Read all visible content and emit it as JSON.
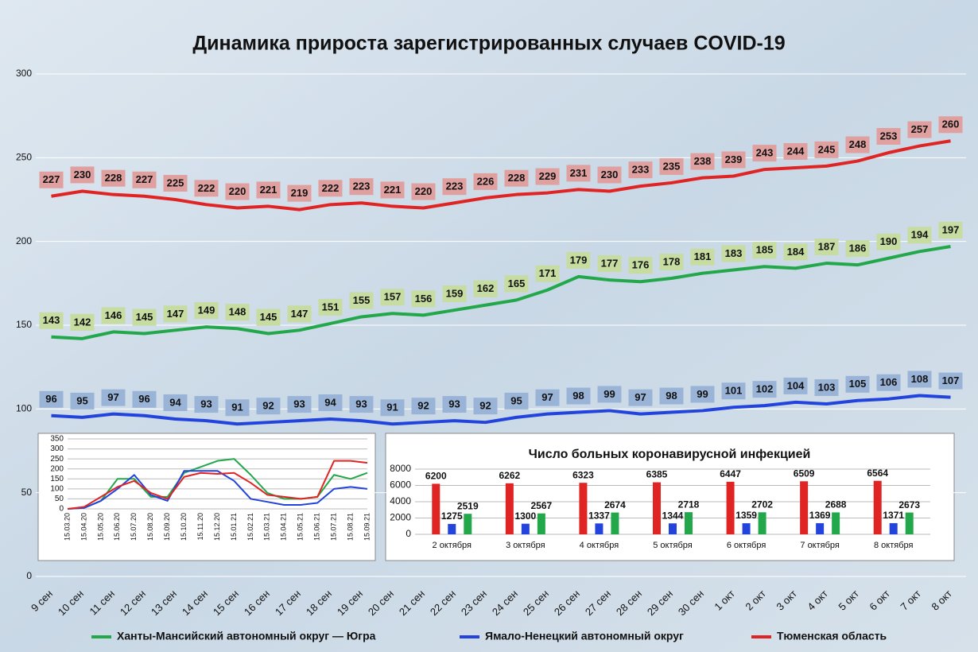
{
  "chart_data": [
    {
      "type": "line",
      "title": "Динамика прироста зарегистрированных случаев COVID-19",
      "categories": [
        "9 сен",
        "10 сен",
        "11 сен",
        "12 сен",
        "13 сен",
        "14 сен",
        "15 сен",
        "16 сен",
        "17 сен",
        "18 сен",
        "19 сен",
        "20 сен",
        "21 сен",
        "22 сен",
        "23 сен",
        "24 сен",
        "25 сен",
        "26 сен",
        "27 сен",
        "28 сен",
        "29 сен",
        "30 сен",
        "1 окт",
        "2 окт",
        "3 окт",
        "4 окт",
        "5 окт",
        "6 окт",
        "7 окт",
        "8 окт"
      ],
      "series": [
        {
          "name": "Ханты-Мансийский автономный округ — Югра",
          "color": "#22a84a",
          "label_color": "#c6dca0",
          "values": [
            143,
            142,
            146,
            145,
            147,
            149,
            148,
            145,
            147,
            151,
            155,
            157,
            156,
            159,
            162,
            165,
            171,
            179,
            177,
            176,
            178,
            181,
            183,
            185,
            184,
            187,
            186,
            190,
            194,
            197
          ]
        },
        {
          "name": "Ямало-Ненецкий автономный округ",
          "color": "#2244dd",
          "label_color": "#9ab4d8",
          "values": [
            96,
            95,
            97,
            96,
            94,
            93,
            91,
            92,
            93,
            94,
            93,
            91,
            92,
            93,
            92,
            95,
            97,
            98,
            99,
            97,
            98,
            99,
            101,
            102,
            104,
            103,
            105,
            106,
            108,
            107
          ]
        },
        {
          "name": "Тюменская область",
          "color": "#e02424",
          "label_color": "#e0a0a0",
          "values": [
            227,
            230,
            228,
            227,
            225,
            222,
            220,
            221,
            219,
            222,
            223,
            221,
            220,
            223,
            226,
            228,
            229,
            231,
            230,
            233,
            235,
            238,
            239,
            243,
            244,
            245,
            248,
            253,
            257,
            260
          ]
        }
      ],
      "ylim": [
        0,
        300
      ],
      "yticks": [
        0,
        50,
        100,
        150,
        200,
        250,
        300
      ],
      "grid": true,
      "legend": "bottom"
    },
    {
      "type": "line",
      "categories": [
        "15.03.20",
        "15.04.20",
        "15.05.20",
        "15.06.20",
        "15.07.20",
        "15.08.20",
        "15.09.20",
        "15.10.20",
        "15.11.20",
        "15.12.20",
        "15.01.21",
        "15.02.21",
        "15.03.21",
        "15.04.21",
        "15.05.21",
        "15.06.21",
        "15.07.21",
        "15.08.21",
        "15.09.21"
      ],
      "series": [
        {
          "color": "#22a84a",
          "values": [
            0,
            5,
            40,
            150,
            150,
            60,
            60,
            180,
            210,
            240,
            250,
            170,
            80,
            50,
            50,
            60,
            170,
            150,
            180
          ]
        },
        {
          "color": "#2244dd",
          "values": [
            0,
            5,
            40,
            100,
            170,
            70,
            40,
            190,
            190,
            190,
            140,
            50,
            35,
            20,
            20,
            30,
            100,
            110,
            100
          ]
        },
        {
          "color": "#e02424",
          "values": [
            0,
            10,
            60,
            110,
            140,
            80,
            50,
            160,
            180,
            175,
            180,
            130,
            70,
            60,
            50,
            60,
            240,
            240,
            230
          ]
        }
      ],
      "ylim": [
        0,
        350
      ],
      "yticks": [
        0,
        50,
        100,
        150,
        200,
        250,
        300,
        350
      ],
      "grid": true
    },
    {
      "type": "bar",
      "title": "Число больных коронавирусной инфекцией",
      "categories": [
        "2 октября",
        "3 октября",
        "4 октября",
        "5 октября",
        "6 октября",
        "7 октября",
        "8 октября"
      ],
      "series": [
        {
          "color": "#e02424",
          "values": [
            6200,
            6262,
            6323,
            6385,
            6447,
            6509,
            6564
          ]
        },
        {
          "color": "#2244dd",
          "values": [
            1275,
            1300,
            1337,
            1344,
            1359,
            1369,
            1371
          ]
        },
        {
          "color": "#22a84a",
          "values": [
            2519,
            2567,
            2674,
            2718,
            2702,
            2688,
            2673
          ]
        }
      ],
      "ylim": [
        0,
        8000
      ],
      "yticks": [
        0,
        2000,
        4000,
        6000,
        8000
      ],
      "grid": true
    }
  ]
}
